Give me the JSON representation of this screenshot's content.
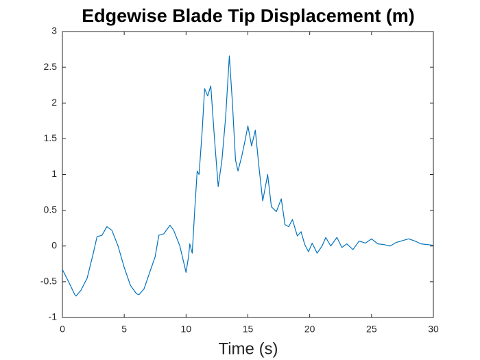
{
  "chart_data": {
    "type": "line",
    "title": "Edgewise Blade Tip Displacement (m)",
    "xlabel": "Time (s)",
    "x": [
      0,
      0.5,
      1.0,
      1.1,
      1.5,
      2.0,
      2.5,
      2.8,
      3.2,
      3.6,
      4.0,
      4.5,
      5.0,
      5.5,
      6.0,
      6.2,
      6.6,
      7.0,
      7.5,
      7.8,
      8.2,
      8.7,
      9.0,
      9.5,
      10.0,
      10.2,
      10.3,
      10.5,
      10.7,
      10.9,
      11.05,
      11.3,
      11.5,
      11.75,
      12.0,
      12.3,
      12.6,
      12.9,
      13.2,
      13.5,
      13.75,
      14.0,
      14.2,
      14.5,
      14.8,
      15.0,
      15.3,
      15.6,
      15.9,
      16.2,
      16.6,
      16.9,
      17.3,
      17.7,
      18.0,
      18.3,
      18.6,
      19.0,
      19.3,
      19.6,
      19.9,
      20.2,
      20.6,
      21.0,
      21.3,
      21.7,
      22.2,
      22.6,
      23.0,
      23.5,
      24.0,
      24.5,
      25.0,
      25.5,
      26.0,
      26.5,
      27.0,
      28.0,
      28.5,
      29.0,
      30.0
    ],
    "values": [
      -0.33,
      -0.5,
      -0.68,
      -0.7,
      -0.62,
      -0.45,
      -0.1,
      0.13,
      0.15,
      0.27,
      0.22,
      0.0,
      -0.3,
      -0.55,
      -0.67,
      -0.68,
      -0.6,
      -0.4,
      -0.15,
      0.15,
      0.17,
      0.29,
      0.22,
      0.0,
      -0.37,
      -0.15,
      0.03,
      -0.1,
      0.5,
      1.05,
      1.0,
      1.6,
      2.2,
      2.1,
      2.24,
      1.5,
      0.83,
      1.2,
      1.8,
      2.66,
      2.0,
      1.2,
      1.05,
      1.25,
      1.5,
      1.68,
      1.4,
      1.62,
      1.1,
      0.63,
      1.0,
      0.55,
      0.48,
      0.66,
      0.3,
      0.27,
      0.37,
      0.14,
      0.2,
      0.02,
      -0.08,
      0.04,
      -0.1,
      0.0,
      0.12,
      0.0,
      0.12,
      -0.02,
      0.03,
      -0.05,
      0.07,
      0.04,
      0.1,
      0.03,
      0.02,
      0.0,
      0.05,
      0.1,
      0.07,
      0.03,
      0.01
    ],
    "color": "#0072bd",
    "xlim": [
      0,
      30
    ],
    "xticks": [
      0,
      5,
      10,
      15,
      20,
      25,
      30
    ],
    "ylim": [
      -1,
      3
    ],
    "yticks": [
      -1,
      -0.5,
      0,
      0.5,
      1,
      1.5,
      2,
      2.5,
      3
    ]
  }
}
